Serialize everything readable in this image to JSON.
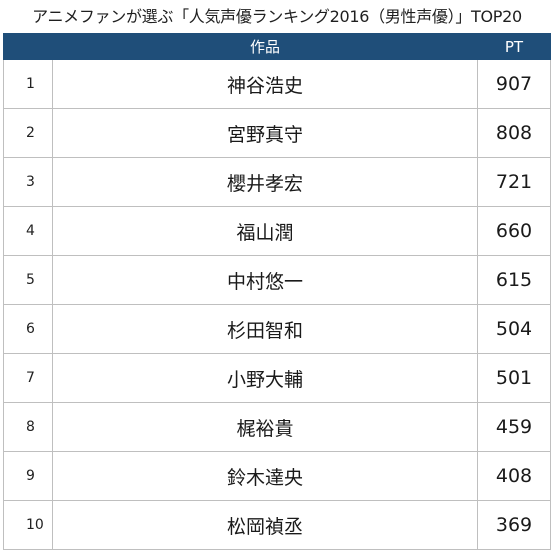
{
  "title": "アニメファンが選ぶ「人気声優ランキング2016（男性声優）」TOP20",
  "header": {
    "rank_label": "",
    "name_label": "作品",
    "pt_label": "PT"
  },
  "colors": {
    "header_background": "#1f4e79",
    "header_text": "#ffffff",
    "border": "#bfbfbf"
  },
  "rows": [
    {
      "rank": "1",
      "name": "神谷浩史",
      "pt": "907"
    },
    {
      "rank": "2",
      "name": "宮野真守",
      "pt": "808"
    },
    {
      "rank": "3",
      "name": "櫻井孝宏",
      "pt": "721"
    },
    {
      "rank": "4",
      "name": "福山潤",
      "pt": "660"
    },
    {
      "rank": "5",
      "name": "中村悠一",
      "pt": "615"
    },
    {
      "rank": "6",
      "name": "杉田智和",
      "pt": "504"
    },
    {
      "rank": "7",
      "name": "小野大輔",
      "pt": "501"
    },
    {
      "rank": "8",
      "name": "梶裕貴",
      "pt": "459"
    },
    {
      "rank": "9",
      "name": "鈴木達央",
      "pt": "408"
    },
    {
      "rank": "10",
      "name": "松岡禎丞",
      "pt": "369"
    }
  ]
}
